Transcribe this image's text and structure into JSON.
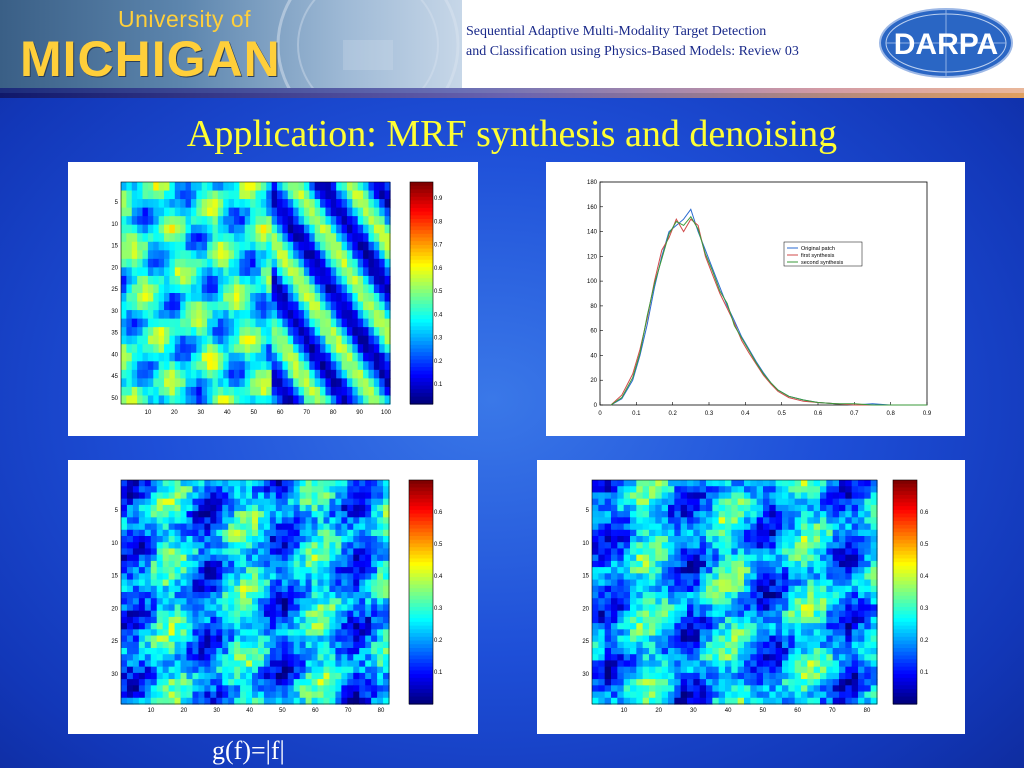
{
  "header": {
    "logo_small": "University of",
    "logo_big": "MICHIGAN",
    "title_line1": "Sequential Adaptive Multi-Modality Target Detection",
    "title_line2": "and Classification using Physics-Based Models: Review 03",
    "darpa_logo": "DARPA"
  },
  "slide_title": "Application: MRF synthesis and denoising",
  "caption": "g(f)=|f|",
  "panels": {
    "top_left": {
      "y_ticks": [
        "5",
        "10",
        "15",
        "20",
        "25",
        "30",
        "35",
        "40",
        "45",
        "50"
      ],
      "x_ticks": [
        "10",
        "20",
        "30",
        "40",
        "50",
        "60",
        "70",
        "80",
        "90",
        "100"
      ],
      "cb_ticks": [
        "0.9",
        "0.8",
        "0.7",
        "0.6",
        "0.5",
        "0.4",
        "0.3",
        "0.2",
        "0.1"
      ]
    },
    "bottom_left": {
      "y_ticks": [
        "5",
        "10",
        "15",
        "20",
        "25",
        "30"
      ],
      "x_ticks": [
        "10",
        "20",
        "30",
        "40",
        "50",
        "60",
        "70",
        "80"
      ],
      "cb_ticks": [
        "0.6",
        "0.5",
        "0.4",
        "0.3",
        "0.2",
        "0.1"
      ]
    },
    "bottom_right": {
      "y_ticks": [
        "5",
        "10",
        "15",
        "20",
        "25",
        "30"
      ],
      "x_ticks": [
        "10",
        "20",
        "30",
        "40",
        "50",
        "60",
        "70",
        "80"
      ],
      "cb_ticks": [
        "0.6",
        "0.5",
        "0.4",
        "0.3",
        "0.2",
        "0.1"
      ]
    }
  },
  "chart_data": [
    {
      "type": "line",
      "x_ticks": [
        "0",
        "0.1",
        "0.2",
        "0.3",
        "0.4",
        "0.5",
        "0.6",
        "0.7",
        "0.8",
        "0.9"
      ],
      "y_ticks": [
        "0",
        "20",
        "40",
        "60",
        "80",
        "100",
        "120",
        "140",
        "160",
        "180"
      ],
      "xlim": [
        0,
        0.9
      ],
      "ylim": [
        0,
        180
      ],
      "legend_position": "right",
      "series": [
        {
          "name": "Original patch",
          "color": "#2a6ad0",
          "x": [
            0.03,
            0.06,
            0.09,
            0.11,
            0.13,
            0.15,
            0.17,
            0.19,
            0.21,
            0.23,
            0.25,
            0.27,
            0.29,
            0.31,
            0.33,
            0.35,
            0.37,
            0.39,
            0.41,
            0.43,
            0.45,
            0.47,
            0.49,
            0.52,
            0.56,
            0.6,
            0.65,
            0.7,
            0.75,
            0.8,
            0.85,
            0.9
          ],
          "y": [
            0,
            5,
            20,
            40,
            65,
            95,
            120,
            140,
            145,
            150,
            158,
            140,
            125,
            110,
            95,
            80,
            68,
            55,
            45,
            35,
            26,
            18,
            12,
            7,
            4,
            2,
            1,
            0,
            1,
            0,
            0,
            0
          ]
        },
        {
          "name": "first synthesis",
          "color": "#d04a4a",
          "x": [
            0.03,
            0.06,
            0.09,
            0.11,
            0.13,
            0.15,
            0.17,
            0.19,
            0.21,
            0.23,
            0.25,
            0.27,
            0.29,
            0.31,
            0.33,
            0.35,
            0.37,
            0.39,
            0.41,
            0.43,
            0.45,
            0.47,
            0.49,
            0.52,
            0.56,
            0.6,
            0.65,
            0.7,
            0.75,
            0.8,
            0.85,
            0.9
          ],
          "y": [
            0,
            8,
            25,
            45,
            70,
            100,
            125,
            135,
            150,
            140,
            150,
            145,
            120,
            105,
            90,
            78,
            66,
            52,
            42,
            33,
            24,
            17,
            11,
            6,
            3,
            2,
            1,
            0,
            0,
            0,
            0,
            0
          ]
        },
        {
          "name": "second synthesis",
          "color": "#3a9a3a",
          "x": [
            0.03,
            0.06,
            0.09,
            0.11,
            0.13,
            0.15,
            0.17,
            0.19,
            0.21,
            0.23,
            0.25,
            0.27,
            0.29,
            0.31,
            0.33,
            0.35,
            0.37,
            0.39,
            0.41,
            0.43,
            0.45,
            0.47,
            0.49,
            0.52,
            0.56,
            0.6,
            0.65,
            0.7,
            0.75,
            0.8,
            0.85,
            0.9
          ],
          "y": [
            0,
            6,
            22,
            42,
            72,
            98,
            118,
            138,
            148,
            145,
            152,
            142,
            122,
            108,
            92,
            82,
            64,
            54,
            44,
            34,
            25,
            18,
            12,
            7,
            4,
            2,
            1,
            1,
            0,
            0,
            0,
            0
          ]
        }
      ]
    }
  ]
}
